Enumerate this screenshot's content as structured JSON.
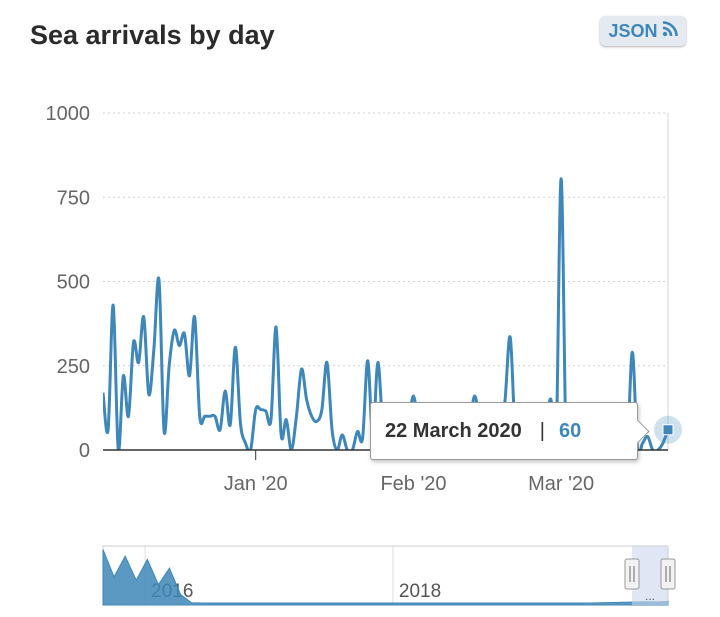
{
  "header": {
    "title": "Sea arrivals by day",
    "json_label": "JSON",
    "json_icon": "rss-icon"
  },
  "tooltip": {
    "date": "22 March 2020",
    "separator": "|",
    "value": "60"
  },
  "colors": {
    "series": "#3e87b8",
    "navigator_mask": "#ccd6eb",
    "grid": "#d6d6d6"
  },
  "chart_data": {
    "type": "line",
    "title": "Sea arrivals by day",
    "xlabel": "",
    "ylabel": "",
    "x_start": "2019-12-02",
    "x_end": "2020-03-22",
    "x_ticks": [
      {
        "label": "Jan '20",
        "day": 30
      },
      {
        "label": "Feb '20",
        "day": 61
      },
      {
        "label": "Mar '20",
        "day": 90
      }
    ],
    "y_ticks": [
      0,
      250,
      500,
      750,
      1000
    ],
    "ylim": [
      0,
      1000
    ],
    "grid": true,
    "values": [
      170,
      60,
      430,
      0,
      220,
      100,
      320,
      260,
      395,
      165,
      300,
      505,
      55,
      250,
      355,
      310,
      345,
      220,
      395,
      100,
      100,
      100,
      100,
      60,
      175,
      75,
      305,
      80,
      20,
      0,
      120,
      120,
      115,
      90,
      365,
      45,
      90,
      0,
      100,
      240,
      150,
      100,
      85,
      120,
      260,
      60,
      0,
      45,
      0,
      0,
      55,
      35,
      265,
      40,
      260,
      60,
      0,
      40,
      100,
      30,
      80,
      160,
      70,
      40,
      100,
      60,
      0,
      50,
      120,
      60,
      90,
      100,
      80,
      160,
      90,
      40,
      60,
      0,
      20,
      150,
      335,
      40,
      0,
      60,
      90,
      40,
      120,
      80,
      150,
      0,
      805,
      0,
      20,
      0,
      60,
      100,
      40,
      0,
      30,
      80,
      20,
      0,
      40,
      10,
      290,
      0,
      20,
      40,
      0,
      0,
      20,
      60
    ],
    "navigator": {
      "x_ticks": [
        {
          "label": "2016",
          "year": 2016
        },
        {
          "label": "2018",
          "year": 2018
        }
      ],
      "start_year": 2015.66,
      "end_year": 2020.22,
      "monthly_values": [
        900,
        620,
        780,
        560,
        720,
        480,
        560,
        300,
        40,
        25,
        20,
        18,
        20,
        22,
        25,
        20,
        18,
        20,
        22,
        24,
        26,
        22,
        20,
        18,
        20,
        22,
        20,
        25,
        22,
        20,
        18,
        20,
        22,
        24,
        22,
        20,
        22,
        25,
        24,
        20,
        22,
        26,
        28,
        30,
        35,
        40,
        45,
        50,
        55,
        60,
        55,
        65
      ],
      "selected_range": [
        "2020-03-01",
        "2020-03-22"
      ]
    }
  }
}
